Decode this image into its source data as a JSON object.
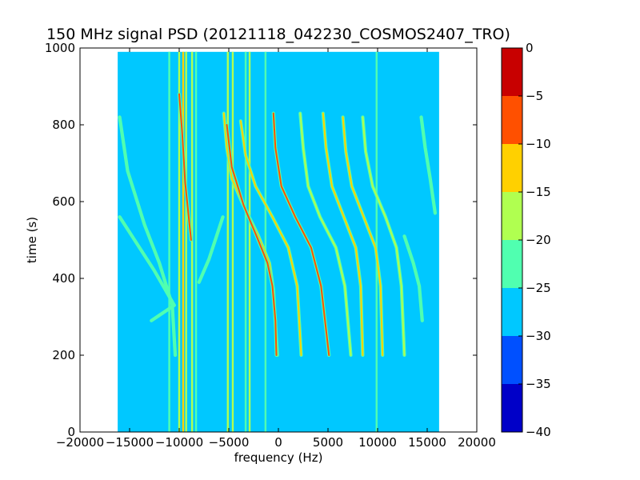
{
  "chart_data": {
    "type": "heatmap",
    "title": "150 MHz signal PSD (20121118_042230_COSMOS2407_TRO)",
    "xlabel": "frequency (Hz)",
    "ylabel": "time (s)",
    "xlim": [
      -20000,
      20000
    ],
    "ylim": [
      0,
      1000
    ],
    "xticks": [
      -20000,
      -15000,
      -10000,
      -5000,
      0,
      5000,
      10000,
      15000,
      20000
    ],
    "xtick_labels": [
      "−20000",
      "−15000",
      "−10000",
      "−5000",
      "0",
      "5000",
      "10000",
      "15000",
      "20000"
    ],
    "yticks": [
      0,
      200,
      400,
      600,
      800,
      1000
    ],
    "ytick_labels": [
      "0",
      "200",
      "400",
      "600",
      "800",
      "1000"
    ],
    "data_extent": {
      "x": [
        -16200,
        16200
      ],
      "y": [
        0,
        990
      ]
    },
    "background_level": -27.5,
    "colorbar": {
      "range": [
        -40,
        0
      ],
      "levels": [
        -40,
        -35,
        -30,
        -25,
        -20,
        -15,
        -10,
        -5,
        0
      ],
      "tick_labels": [
        "−40",
        "−35",
        "−30",
        "−25",
        "−20",
        "−15",
        "−10",
        "−5",
        "0"
      ],
      "colors": [
        "#0000c8",
        "#0050ff",
        "#00c8ff",
        "#50ffb0",
        "#b0ff50",
        "#ffd000",
        "#ff5000",
        "#c80000"
      ]
    },
    "vertical_lines": [
      {
        "x": -11000,
        "level": -22
      },
      {
        "x": -10000,
        "level": -17
      },
      {
        "x": -9600,
        "level": -12
      },
      {
        "x": -9300,
        "level": -17
      },
      {
        "x": -8700,
        "level": -17
      },
      {
        "x": -8300,
        "level": -20
      },
      {
        "x": -5100,
        "level": -17
      },
      {
        "x": -4600,
        "level": -15
      },
      {
        "x": -3300,
        "level": -22
      },
      {
        "x": -2900,
        "level": -17
      },
      {
        "x": -1300,
        "level": -22
      },
      {
        "x": 9900,
        "level": -22
      }
    ],
    "traces": [
      {
        "level": -22,
        "points": [
          [
            -16000,
            820
          ],
          [
            -15200,
            680
          ],
          [
            -13500,
            540
          ],
          [
            -12000,
            440
          ],
          [
            -10700,
            330
          ],
          [
            -10400,
            200
          ]
        ]
      },
      {
        "level": -22,
        "points": [
          [
            -16000,
            560
          ],
          [
            -14500,
            500
          ],
          [
            -12500,
            420
          ],
          [
            -10500,
            330
          ],
          [
            -12800,
            290
          ]
        ]
      },
      {
        "level": -8,
        "points": [
          [
            -10000,
            880
          ],
          [
            -9700,
            780
          ],
          [
            -9400,
            650
          ],
          [
            -8800,
            500
          ]
        ]
      },
      {
        "level": -22,
        "points": [
          [
            -8000,
            390
          ],
          [
            -7000,
            450
          ],
          [
            -5600,
            560
          ]
        ]
      },
      {
        "level": -12,
        "points": [
          [
            -5500,
            830
          ],
          [
            -5200,
            740
          ],
          [
            -4700,
            660
          ],
          [
            -3700,
            600
          ],
          [
            -2000,
            510
          ],
          [
            -900,
            440
          ],
          [
            -500,
            370
          ],
          [
            -300,
            280
          ],
          [
            -100,
            200
          ]
        ]
      },
      {
        "level": -8,
        "points": [
          [
            -5200,
            800
          ],
          [
            -4700,
            690
          ],
          [
            -3500,
            590
          ],
          [
            -2200,
            510
          ],
          [
            -1100,
            440
          ],
          [
            -600,
            380
          ],
          [
            -300,
            290
          ],
          [
            -200,
            200
          ]
        ]
      },
      {
        "level": -12,
        "points": [
          [
            -3800,
            810
          ],
          [
            -3300,
            720
          ],
          [
            -2300,
            640
          ],
          [
            -600,
            560
          ],
          [
            1000,
            480
          ],
          [
            1900,
            380
          ],
          [
            2300,
            200
          ]
        ]
      },
      {
        "level": -8,
        "points": [
          [
            -500,
            830
          ],
          [
            -300,
            740
          ],
          [
            300,
            640
          ],
          [
            1700,
            560
          ],
          [
            3300,
            480
          ],
          [
            4300,
            380
          ],
          [
            5100,
            200
          ]
        ]
      },
      {
        "level": -17,
        "points": [
          [
            2200,
            830
          ],
          [
            2500,
            740
          ],
          [
            3000,
            640
          ],
          [
            4200,
            560
          ],
          [
            5800,
            480
          ],
          [
            6700,
            380
          ],
          [
            7300,
            200
          ]
        ]
      },
      {
        "level": -12,
        "points": [
          [
            4500,
            830
          ],
          [
            4800,
            740
          ],
          [
            5400,
            640
          ],
          [
            6600,
            560
          ],
          [
            7800,
            480
          ],
          [
            8300,
            380
          ],
          [
            8500,
            200
          ]
        ]
      },
      {
        "level": -12,
        "points": [
          [
            6500,
            820
          ],
          [
            6800,
            730
          ],
          [
            7400,
            640
          ],
          [
            8600,
            560
          ],
          [
            9800,
            480
          ],
          [
            10300,
            380
          ],
          [
            10500,
            200
          ]
        ]
      },
      {
        "level": -17,
        "points": [
          [
            8500,
            820
          ],
          [
            8800,
            730
          ],
          [
            9500,
            640
          ],
          [
            10800,
            560
          ],
          [
            11900,
            480
          ],
          [
            12400,
            380
          ],
          [
            12700,
            200
          ]
        ]
      },
      {
        "level": -22,
        "points": [
          [
            12700,
            510
          ],
          [
            13600,
            440
          ],
          [
            14200,
            380
          ],
          [
            14500,
            290
          ]
        ]
      },
      {
        "level": -20,
        "points": [
          [
            14400,
            820
          ],
          [
            14800,
            740
          ],
          [
            15300,
            660
          ],
          [
            15800,
            570
          ]
        ]
      }
    ]
  }
}
